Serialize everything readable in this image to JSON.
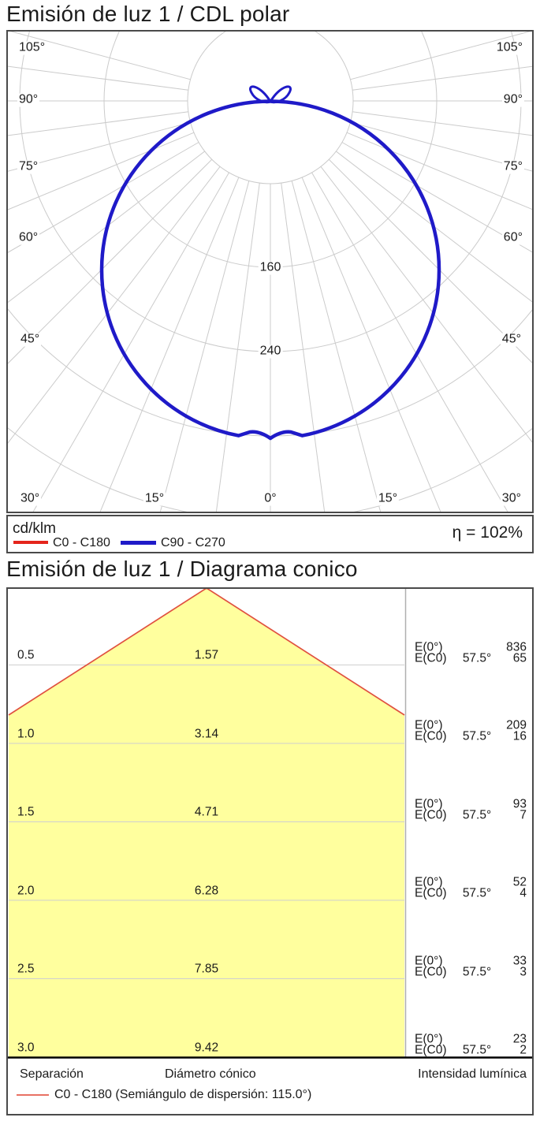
{
  "polar": {
    "title": "Emisión de luz 1 / CDL polar",
    "unit_label": "cd/klm",
    "efficiency_label": "η = 102%",
    "legend": {
      "c0_label": "C0 - C180",
      "c90_label": "C90 - C270"
    },
    "radial_tick_labels": {
      "r160": "160",
      "r240": "240"
    },
    "angle_labels": {
      "left": [
        "105°",
        "90°",
        "75°",
        "60°",
        "45°",
        "30°"
      ],
      "right": [
        "105°",
        "90°",
        "75°",
        "60°",
        "45°",
        "30°"
      ],
      "bottom": [
        "15°",
        "0°",
        "15°"
      ]
    },
    "colors": {
      "c0": "#e4251c",
      "c90": "#1f1ac8",
      "grid": "#cbcbcb"
    }
  },
  "cone": {
    "title": "Emisión de luz 1 / Diagrama conico",
    "rows": [
      {
        "separation": "0.5",
        "diameter": "1.57",
        "e0_label": "E(0°)",
        "e0_value": "836",
        "ec0_label": "E(C0)",
        "ec0_angle": "57.5°",
        "ec0_value": "65"
      },
      {
        "separation": "1.0",
        "diameter": "3.14",
        "e0_label": "E(0°)",
        "e0_value": "209",
        "ec0_label": "E(C0)",
        "ec0_angle": "57.5°",
        "ec0_value": "16"
      },
      {
        "separation": "1.5",
        "diameter": "4.71",
        "e0_label": "E(0°)",
        "e0_value": "93",
        "ec0_label": "E(C0)",
        "ec0_angle": "57.5°",
        "ec0_value": "7"
      },
      {
        "separation": "2.0",
        "diameter": "6.28",
        "e0_label": "E(0°)",
        "e0_value": "52",
        "ec0_label": "E(C0)",
        "ec0_angle": "57.5°",
        "ec0_value": "4"
      },
      {
        "separation": "2.5",
        "diameter": "7.85",
        "e0_label": "E(0°)",
        "e0_value": "33",
        "ec0_label": "E(C0)",
        "ec0_angle": "57.5°",
        "ec0_value": "3"
      },
      {
        "separation": "3.0",
        "diameter": "9.42",
        "e0_label": "E(0°)",
        "e0_value": "23",
        "ec0_label": "E(C0)",
        "ec0_angle": "57.5°",
        "ec0_value": "2"
      }
    ],
    "footer": {
      "separation_label": "Separación",
      "diameter_label": "Diámetro cónico",
      "intensity_label": "Intensidad lumínica",
      "legend_label": "C0 - C180 (Semiángulo de dispersión: 115.0°)"
    },
    "colors": {
      "fill": "#ffff9e",
      "line": "#e05140"
    }
  },
  "chart_data": [
    {
      "type": "line",
      "subtype": "polar-luminous-intensity",
      "title": "Emisión de luz 1 / CDL polar",
      "units": "cd/klm",
      "efficiency_eta_percent": 102,
      "angle_ticks_deg": [
        0,
        15,
        30,
        45,
        60,
        75,
        90,
        105
      ],
      "radial_gridlines": [
        80,
        160,
        240,
        320
      ],
      "radial_tick_labels_shown": [
        160,
        240
      ],
      "series": [
        {
          "name": "C0 - C180",
          "color": "#e4251c",
          "gamma_deg": [
            0,
            15,
            30,
            45,
            60,
            75,
            90,
            95
          ],
          "values": [
            324,
            313,
            281,
            229,
            162,
            84,
            30,
            35
          ]
        },
        {
          "name": "C90 - C270",
          "color": "#1f1ac8",
          "gamma_deg": [
            0,
            15,
            30,
            45,
            60,
            75,
            90,
            95
          ],
          "values": [
            324,
            313,
            281,
            229,
            162,
            84,
            30,
            35
          ]
        }
      ],
      "legend_position": "bottom",
      "grid": true
    },
    {
      "type": "table",
      "subtype": "cone-diagram",
      "title": "Emisión de luz 1 / Diagrama conico",
      "beam_angle_label": "Semiángulo de dispersión: 115.0°",
      "ec0_angle_deg": 57.5,
      "columns": [
        "Separación",
        "Diámetro cónico",
        "E(0°)",
        "E(C0)"
      ],
      "rows": [
        [
          0.5,
          1.57,
          836,
          65
        ],
        [
          1.0,
          3.14,
          209,
          16
        ],
        [
          1.5,
          4.71,
          93,
          7
        ],
        [
          2.0,
          6.28,
          52,
          4
        ],
        [
          2.5,
          7.85,
          33,
          3
        ],
        [
          3.0,
          9.42,
          23,
          2
        ]
      ]
    }
  ]
}
